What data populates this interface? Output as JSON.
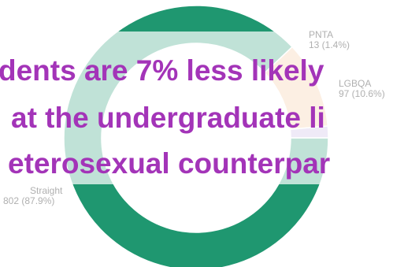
{
  "chart_data": {
    "type": "pie",
    "donut": true,
    "categories": [
      "Straight",
      "LGBQA",
      "PNTA"
    ],
    "values": [
      802,
      97,
      13
    ],
    "value_labels": [
      "802 (87.9%)",
      "97 (10.6%)",
      "13 (1.4%)"
    ],
    "colors": [
      "#1f9770",
      "#f3c49b",
      "#c4b2e3"
    ]
  },
  "headline": {
    "lines": [
      "dents are 7% less likely",
      "at the undergraduate li",
      "eterosexual counterpar"
    ],
    "color": "#a334b8"
  }
}
